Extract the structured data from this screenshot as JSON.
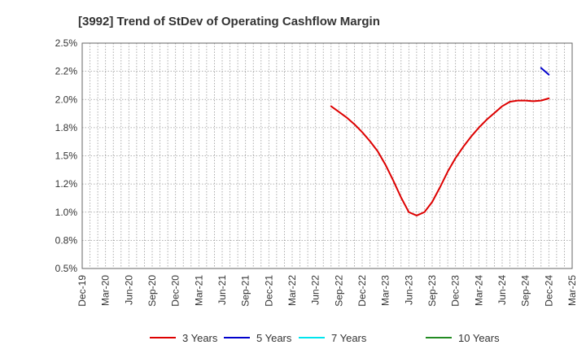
{
  "chart_data": {
    "type": "line",
    "title": "[3992]  Trend of StDev of Operating Cashflow Margin",
    "xlabel": "",
    "ylabel": "",
    "y_tick_labels": [
      "0.5%",
      "0.8%",
      "1.0%",
      "1.2%",
      "1.5%",
      "1.8%",
      "2.0%",
      "2.2%",
      "2.5%"
    ],
    "x_tick_labels": [
      "Dec-19",
      "Mar-20",
      "Jun-20",
      "Sep-20",
      "Dec-20",
      "Mar-21",
      "Jun-21",
      "Sep-21",
      "Dec-21",
      "Mar-22",
      "Jun-22",
      "Sep-22",
      "Dec-22",
      "Mar-23",
      "Jun-23",
      "Sep-23",
      "Dec-23",
      "Mar-24",
      "Jun-24",
      "Sep-24",
      "Dec-24",
      "Mar-25"
    ],
    "ylim": [
      0.5,
      2.5
    ],
    "grid": true,
    "legend_position": "bottom",
    "series": [
      {
        "name": "3 Years",
        "color": "#dd0000",
        "points": [
          [
            "Aug-22",
            1.94
          ],
          [
            "Sep-22",
            1.89
          ],
          [
            "Oct-22",
            1.84
          ],
          [
            "Nov-22",
            1.78
          ],
          [
            "Dec-22",
            1.71
          ],
          [
            "Jan-23",
            1.63
          ],
          [
            "Feb-23",
            1.54
          ],
          [
            "Mar-23",
            1.42
          ],
          [
            "Apr-23",
            1.28
          ],
          [
            "May-23",
            1.13
          ],
          [
            "Jun-23",
            1.0
          ],
          [
            "Jul-23",
            0.97
          ],
          [
            "Aug-23",
            1.0
          ],
          [
            "Sep-23",
            1.09
          ],
          [
            "Oct-23",
            1.22
          ],
          [
            "Nov-23",
            1.36
          ],
          [
            "Dec-23",
            1.48
          ],
          [
            "Jan-24",
            1.58
          ],
          [
            "Feb-24",
            1.67
          ],
          [
            "Mar-24",
            1.75
          ],
          [
            "Apr-24",
            1.82
          ],
          [
            "May-24",
            1.88
          ],
          [
            "Jun-24",
            1.94
          ],
          [
            "Jul-24",
            1.98
          ],
          [
            "Aug-24",
            1.99
          ],
          [
            "Sep-24",
            1.99
          ],
          [
            "Oct-24",
            1.985
          ],
          [
            "Nov-24",
            1.99
          ],
          [
            "Dec-24",
            2.01
          ]
        ]
      },
      {
        "name": "5 Years",
        "color": "#0000cc",
        "points": [
          [
            "Nov-24",
            2.28
          ],
          [
            "Dec-24",
            2.22
          ]
        ]
      },
      {
        "name": "7 Years",
        "color": "#00e5ee",
        "points": []
      },
      {
        "name": "10 Years",
        "color": "#228b22",
        "points": []
      }
    ]
  }
}
